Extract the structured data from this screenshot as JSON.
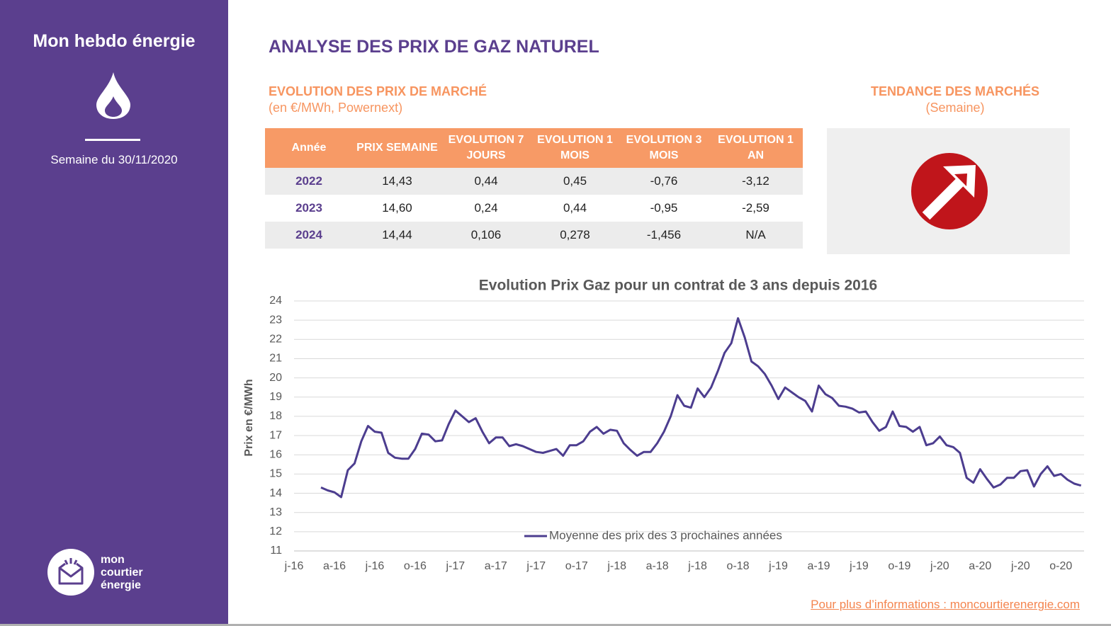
{
  "sidebar": {
    "title": "Mon hebdo énergie",
    "week": "Semaine du 30/11/2020",
    "logo_text": [
      "mon",
      "courtier",
      "énergie"
    ]
  },
  "header": {
    "title": "ANALYSE DES PRIX DE GAZ NATUREL",
    "subtitle": "EVOLUTION DES PRIX DE MARCHÉ",
    "unit": "(en €/MWh, Powernext)"
  },
  "table": {
    "columns": [
      "Année",
      "PRIX SEMAINE",
      "EVOLUTION 7 JOURS",
      "EVOLUTION 1 MOIS",
      "EVOLUTION 3 MOIS",
      "EVOLUTION 1 AN"
    ],
    "rows": [
      [
        "2022",
        "14,43",
        "0,44",
        "0,45",
        "-0,76",
        "-3,12"
      ],
      [
        "2023",
        "14,60",
        "0,24",
        "0,44",
        "-0,95",
        "-2,59"
      ],
      [
        "2024",
        "14,44",
        "0,106",
        "0,278",
        "-1,456",
        "N/A"
      ]
    ]
  },
  "trend": {
    "title": "TENDANCE DES MARCHÉS",
    "subtitle": "(Semaine)"
  },
  "chart_data": {
    "type": "line",
    "title": "Evolution Prix Gaz pour un contrat de 3 ans depuis 2016",
    "y_label": "Prix en €/MWh",
    "categories": [
      "j-16",
      null,
      null,
      null,
      null,
      null,
      "a-16",
      null,
      null,
      null,
      null,
      null,
      "j-16",
      null,
      null,
      null,
      null,
      null,
      "o-16",
      null,
      null,
      null,
      null,
      null,
      "j-17",
      null,
      null,
      null,
      null,
      null,
      "a-17",
      null,
      null,
      null,
      null,
      null,
      "j-17",
      null,
      null,
      null,
      null,
      null,
      "o-17",
      null,
      null,
      null,
      null,
      null,
      "j-18",
      null,
      null,
      null,
      null,
      null,
      "a-18",
      null,
      null,
      null,
      null,
      null,
      "j-18",
      null,
      null,
      null,
      null,
      null,
      "o-18",
      null,
      null,
      null,
      null,
      null,
      "j-19",
      null,
      null,
      null,
      null,
      null,
      "a-19",
      null,
      null,
      null,
      null,
      null,
      "j-19",
      null,
      null,
      null,
      null,
      null,
      "o-19",
      null,
      null,
      null,
      null,
      null,
      "j-20",
      null,
      null,
      null,
      null,
      null,
      "a-20",
      null,
      null,
      null,
      null,
      null,
      "j-20",
      null,
      null,
      null,
      null,
      null,
      "o-20",
      null,
      null,
      null
    ],
    "series": [
      {
        "name": "Moyenne des prix des 3 prochaines années",
        "color": "#4c3d8f",
        "values": [
          null,
          null,
          null,
          null,
          14.3,
          14.15,
          14.05,
          13.8,
          15.2,
          15.55,
          16.7,
          17.5,
          17.2,
          17.15,
          16.1,
          15.85,
          15.8,
          15.8,
          16.3,
          17.1,
          17.05,
          16.7,
          16.75,
          17.6,
          18.3,
          18.0,
          17.7,
          17.9,
          17.2,
          16.6,
          16.9,
          16.9,
          16.45,
          16.55,
          16.45,
          16.3,
          16.15,
          16.1,
          16.2,
          16.3,
          15.95,
          16.5,
          16.5,
          16.7,
          17.2,
          17.45,
          17.1,
          17.3,
          17.25,
          16.6,
          16.25,
          15.95,
          16.15,
          16.15,
          16.6,
          17.2,
          18.0,
          19.1,
          18.55,
          18.45,
          19.45,
          19.0,
          19.5,
          20.35,
          21.3,
          21.8,
          23.1,
          22.1,
          20.85,
          20.6,
          20.2,
          19.6,
          18.9,
          19.5,
          19.25,
          19.0,
          18.8,
          18.25,
          19.6,
          19.15,
          18.95,
          18.55,
          18.5,
          18.4,
          18.2,
          18.25,
          17.7,
          17.25,
          17.45,
          18.25,
          17.5,
          17.45,
          17.2,
          17.45,
          16.5,
          16.6,
          16.95,
          16.5,
          16.4,
          16.1,
          14.8,
          14.55,
          15.25,
          14.75,
          14.3,
          14.45,
          14.8,
          14.8,
          15.15,
          15.2,
          14.35,
          15.0,
          15.4,
          14.9,
          15.0,
          14.7,
          14.5,
          14.4
        ]
      }
    ],
    "ylim": [
      11,
      24
    ],
    "yticks": [
      11,
      12,
      13,
      14,
      15,
      16,
      17,
      18,
      19,
      20,
      21,
      22,
      23,
      24
    ],
    "grid": true,
    "legend": "bottom"
  },
  "footer": {
    "link": "Pour plus d’informations : moncourtierenergie.com"
  }
}
